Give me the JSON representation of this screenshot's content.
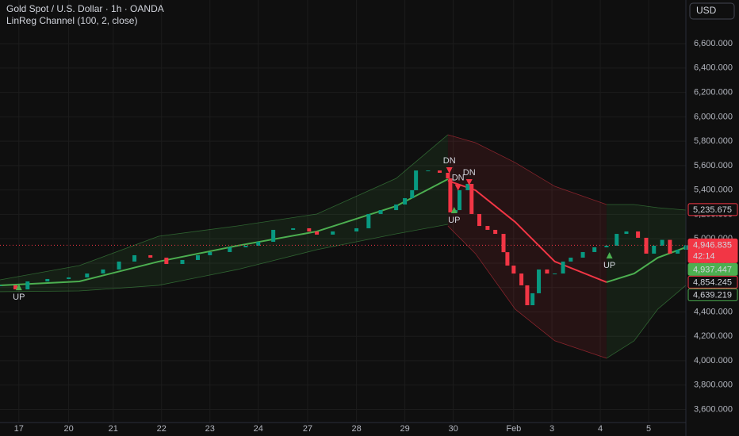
{
  "header": {
    "symbol": "Gold Spot / U.S. Dollar · 1h · OANDA",
    "indicator": "LinReg Channel (100, 2, close)",
    "currency": "USD"
  },
  "chart_data": {
    "type": "candlestick",
    "xlim": [
      -0.39,
      13.79
    ],
    "xticks": [
      {
        "value": 0,
        "label": "17"
      },
      {
        "value": 1.03,
        "label": "20"
      },
      {
        "value": 1.95,
        "label": "21"
      },
      {
        "value": 2.95,
        "label": "22"
      },
      {
        "value": 3.95,
        "label": "23"
      },
      {
        "value": 4.95,
        "label": "24"
      },
      {
        "value": 5.97,
        "label": "27"
      },
      {
        "value": 6.98,
        "label": "28"
      },
      {
        "value": 7.98,
        "label": "29"
      },
      {
        "value": 8.98,
        "label": "30"
      },
      {
        "value": 10.23,
        "label": "Feb"
      },
      {
        "value": 11.02,
        "label": "3"
      },
      {
        "value": 12.02,
        "label": "4"
      },
      {
        "value": 13.02,
        "label": "5"
      }
    ],
    "ylim": [
      3493,
      6958
    ],
    "yticks": [
      {
        "value": 3600,
        "label": "3,600.000"
      },
      {
        "value": 3800,
        "label": "3,800.000"
      },
      {
        "value": 4000,
        "label": "4,000.000"
      },
      {
        "value": 4200,
        "label": "4,200.000"
      },
      {
        "value": 4400,
        "label": "4,400.000"
      },
      {
        "value": 4600,
        "label": "4,600.000"
      },
      {
        "value": 4800,
        "label": "4,800.000"
      },
      {
        "value": 5000,
        "label": "5,000.000"
      },
      {
        "value": 5200,
        "label": "5,200.000"
      },
      {
        "value": 5400,
        "label": "5,400.000"
      },
      {
        "value": 5600,
        "label": "5,600.000"
      },
      {
        "value": 5800,
        "label": "5,800.000"
      },
      {
        "value": 6000,
        "label": "6,000.000"
      },
      {
        "value": 6200,
        "label": "6,200.000"
      },
      {
        "value": 6400,
        "label": "6,400.000"
      },
      {
        "value": 6600,
        "label": "6,600.000"
      }
    ],
    "grid": true,
    "up_color": "#089981",
    "down_color": "#f23645",
    "price": {
      "x": [
        -0.39,
        -0.07,
        0.18,
        0.59,
        1.03,
        1.41,
        1.74,
        2.07,
        2.39,
        2.72,
        3.05,
        3.38,
        3.7,
        3.95,
        4.36,
        4.69,
        4.95,
        5.26,
        5.67,
        6.0,
        6.16,
        6.49,
        6.98,
        7.23,
        7.48,
        7.8,
        7.98,
        8.13,
        8.21,
        8.46,
        8.7,
        8.87,
        8.92,
        9.03,
        9.11,
        9.28,
        9.36,
        9.52,
        9.69,
        9.85,
        10.02,
        10.1,
        10.23,
        10.39,
        10.51,
        10.62,
        10.75,
        10.92,
        11.08,
        11.25,
        11.41,
        11.66,
        11.9,
        12.15,
        12.36,
        12.56,
        12.8,
        12.97,
        13.13,
        13.3,
        13.46,
        13.62,
        13.79
      ],
      "close": [
        4618,
        4585,
        4650,
        4670,
        4683,
        4715,
        4748,
        4813,
        4865,
        4845,
        4793,
        4826,
        4865,
        4891,
        4930,
        4943,
        4975,
        5073,
        5086,
        5060,
        5034,
        5060,
        5086,
        5203,
        5235,
        5281,
        5333,
        5398,
        5560,
        5560,
        5541,
        5495,
        5216,
        5235,
        5398,
        5450,
        5203,
        5105,
        5073,
        5040,
        4890,
        4780,
        4715,
        4618,
        4455,
        4553,
        4748,
        4715,
        4715,
        4813,
        4845,
        4891,
        4930,
        4943,
        5040,
        5060,
        5008,
        4878,
        4943,
        4991,
        4878,
        4910,
        4947
      ]
    },
    "channels": [
      {
        "color": "#4caf50",
        "x": [
          -0.39,
          1.25,
          2.89,
          4.52,
          6.16,
          7.8,
          8.87
        ],
        "upper": [
          4663,
          4780,
          5021,
          5105,
          5203,
          5495,
          5853
        ],
        "mid": [
          4618,
          4650,
          4813,
          4943,
          5060,
          5268,
          5489
        ],
        "lower": [
          4566,
          4572,
          4618,
          4748,
          4910,
          5040,
          5118
        ]
      },
      {
        "color": "#f23645",
        "x": [
          8.87,
          9.44,
          10.26,
          11.08,
          12.15
        ],
        "upper": [
          5853,
          5788,
          5625,
          5430,
          5281
        ],
        "mid": [
          5476,
          5398,
          5138,
          4813,
          4644
        ],
        "lower": [
          5105,
          4878,
          4423,
          4163,
          4020
        ]
      },
      {
        "color": "#4caf50",
        "x": [
          12.15,
          12.72,
          13.21,
          13.79
        ],
        "upper": [
          5281,
          5281,
          5255,
          5235
        ],
        "mid": [
          4644,
          4715,
          4845,
          4930
        ],
        "lower": [
          4020,
          4163,
          4423,
          4618
        ]
      }
    ],
    "signals": [
      {
        "x": 0,
        "y": 4604,
        "label": "UP"
      },
      {
        "x": 8.9,
        "y": 5560,
        "label": "DN"
      },
      {
        "x": 9.08,
        "y": 5420,
        "label": "DN"
      },
      {
        "x": 9.0,
        "y": 5235,
        "label": "UP"
      },
      {
        "x": 9.31,
        "y": 5463,
        "label": "DN"
      },
      {
        "x": 12.21,
        "y": 4864,
        "label": "UP"
      }
    ],
    "last_price": 4946.835,
    "countdown": "42:14",
    "price_labels": [
      {
        "value": 5235.675,
        "label": "5,235.675",
        "style": "outline",
        "color": "#f23645"
      },
      {
        "value": 4946.835,
        "label": "4,946.835",
        "style": "filled",
        "color": "#f23645"
      },
      {
        "value": 4937.447,
        "label": "4,937.447",
        "style": "filled",
        "color": "#4caf50"
      },
      {
        "value": 4854.245,
        "label": "4,854.245",
        "style": "outline",
        "color": "#f23645"
      },
      {
        "value": 4639.219,
        "label": "4,639.219",
        "style": "outline",
        "color": "#4caf50"
      }
    ]
  }
}
